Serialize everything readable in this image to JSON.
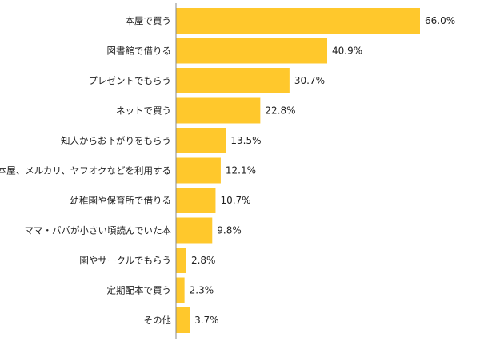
{
  "chart_data": {
    "type": "bar",
    "orientation": "horizontal",
    "title": "",
    "xlabel": "",
    "ylabel": "",
    "xlim": [
      0,
      66
    ],
    "grid": false,
    "legend": "none",
    "bar_color": "#FFC82C",
    "axis_color": "#8A8A8A",
    "categories": [
      "本屋で買う",
      "図書館で借りる",
      "プレゼントでもらう",
      "ネットで買う",
      "知人からお下がりをもらう",
      "古本屋、メルカリ、ヤフオクなどを利用する",
      "幼稚園や保育所で借りる",
      "ママ・パパが小さい頃読んでいた本",
      "園やサークルでもらう",
      "定期配本で買う",
      "その他"
    ],
    "values": [
      66.0,
      40.9,
      30.7,
      22.8,
      13.5,
      12.1,
      10.7,
      9.8,
      2.8,
      2.3,
      3.7
    ],
    "value_labels": [
      "66.0%",
      "40.9%",
      "30.7%",
      "22.8%",
      "13.5%",
      "12.1%",
      "10.7%",
      "9.8%",
      "2.8%",
      "2.3%",
      "3.7%"
    ]
  }
}
